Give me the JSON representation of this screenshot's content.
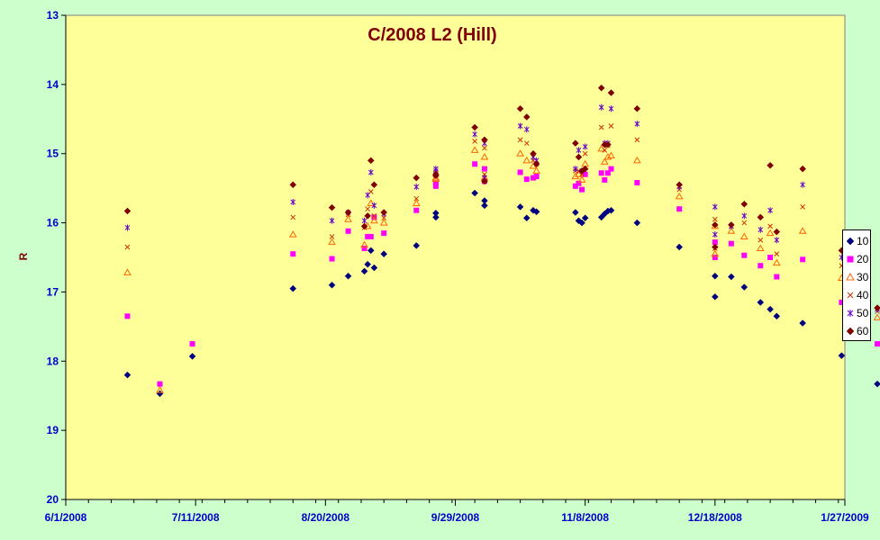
{
  "chart_data": {
    "type": "scatter",
    "title": "C/2008 L2 (Hill)",
    "xlabel": "",
    "ylabel": "R",
    "x_ticks": [
      "6/1/2008",
      "7/11/2008",
      "8/20/2008",
      "9/29/2008",
      "11/8/2008",
      "12/18/2008",
      "1/27/2009"
    ],
    "y_ticks": [
      "13",
      "14",
      "15",
      "16",
      "17",
      "18",
      "19",
      "20"
    ],
    "xlim": [
      "2008-06-01",
      "2009-01-27"
    ],
    "ylim": [
      13,
      20
    ],
    "y_reversed": true,
    "legend_position": "right",
    "series": [
      {
        "name": "10",
        "color": "#000080",
        "marker": "diamond",
        "points": [
          [
            "2008-06-20",
            18.2
          ],
          [
            "2008-06-30",
            18.47
          ],
          [
            "2008-07-10",
            17.93
          ],
          [
            "2008-08-10",
            16.95
          ],
          [
            "2008-08-22",
            16.9
          ],
          [
            "2008-08-27",
            16.77
          ],
          [
            "2008-09-01",
            16.7
          ],
          [
            "2008-09-02",
            16.6
          ],
          [
            "2008-09-03",
            16.4
          ],
          [
            "2008-09-04",
            16.65
          ],
          [
            "2008-09-07",
            16.45
          ],
          [
            "2008-09-17",
            16.33
          ],
          [
            "2008-09-23",
            15.92
          ],
          [
            "2008-09-23",
            15.86
          ],
          [
            "2008-10-05",
            15.57
          ],
          [
            "2008-10-08",
            15.75
          ],
          [
            "2008-10-08",
            15.68
          ],
          [
            "2008-10-19",
            15.77
          ],
          [
            "2008-10-21",
            15.93
          ],
          [
            "2008-10-23",
            15.82
          ],
          [
            "2008-10-24",
            15.84
          ],
          [
            "2008-11-05",
            15.85
          ],
          [
            "2008-11-06",
            15.97
          ],
          [
            "2008-11-07",
            16.0
          ],
          [
            "2008-11-08",
            15.93
          ],
          [
            "2008-11-13",
            15.92
          ],
          [
            "2008-11-14",
            15.87
          ],
          [
            "2008-11-15",
            15.83
          ],
          [
            "2008-11-16",
            15.82
          ],
          [
            "2008-11-24",
            16.0
          ],
          [
            "2008-12-07",
            16.35
          ],
          [
            "2008-12-18",
            17.07
          ],
          [
            "2008-12-18",
            16.77
          ],
          [
            "2008-12-23",
            16.78
          ],
          [
            "2008-12-27",
            16.93
          ],
          [
            "2009-01-01",
            17.15
          ],
          [
            "2009-01-04",
            17.25
          ],
          [
            "2009-01-06",
            17.35
          ],
          [
            "2009-01-14",
            17.45
          ],
          [
            "2009-01-26",
            17.92
          ],
          [
            "2009-02-06",
            18.33
          ]
        ]
      },
      {
        "name": "20",
        "color": "#ff00ff",
        "marker": "square",
        "points": [
          [
            "2008-06-20",
            17.35
          ],
          [
            "2008-06-30",
            18.33
          ],
          [
            "2008-07-10",
            17.75
          ],
          [
            "2008-08-10",
            16.45
          ],
          [
            "2008-08-22",
            16.52
          ],
          [
            "2008-08-27",
            16.12
          ],
          [
            "2008-09-01",
            16.37
          ],
          [
            "2008-09-02",
            16.2
          ],
          [
            "2008-09-03",
            16.2
          ],
          [
            "2008-09-04",
            15.92
          ],
          [
            "2008-09-07",
            16.15
          ],
          [
            "2008-09-17",
            15.82
          ],
          [
            "2008-09-23",
            15.47
          ],
          [
            "2008-09-23",
            15.43
          ],
          [
            "2008-10-05",
            15.15
          ],
          [
            "2008-10-08",
            15.22
          ],
          [
            "2008-10-08",
            15.4
          ],
          [
            "2008-10-19",
            15.27
          ],
          [
            "2008-10-21",
            15.37
          ],
          [
            "2008-10-23",
            15.35
          ],
          [
            "2008-10-24",
            15.33
          ],
          [
            "2008-11-05",
            15.47
          ],
          [
            "2008-11-06",
            15.43
          ],
          [
            "2008-11-07",
            15.52
          ],
          [
            "2008-11-08",
            15.3
          ],
          [
            "2008-11-13",
            15.28
          ],
          [
            "2008-11-14",
            15.38
          ],
          [
            "2008-11-15",
            15.28
          ],
          [
            "2008-11-16",
            15.22
          ],
          [
            "2008-11-24",
            15.42
          ],
          [
            "2008-12-07",
            15.8
          ],
          [
            "2008-12-18",
            16.5
          ],
          [
            "2008-12-18",
            16.28
          ],
          [
            "2008-12-23",
            16.3
          ],
          [
            "2008-12-27",
            16.47
          ],
          [
            "2009-01-01",
            16.62
          ],
          [
            "2009-01-04",
            16.5
          ],
          [
            "2009-01-06",
            16.78
          ],
          [
            "2009-01-14",
            16.53
          ],
          [
            "2009-01-26",
            17.15
          ],
          [
            "2009-02-06",
            17.75
          ]
        ]
      },
      {
        "name": "30",
        "color": "#ff6600",
        "marker": "triangle",
        "points": [
          [
            "2008-06-20",
            16.72
          ],
          [
            "2008-06-30",
            18.42
          ],
          [
            "2008-08-10",
            16.17
          ],
          [
            "2008-08-22",
            16.28
          ],
          [
            "2008-08-27",
            15.95
          ],
          [
            "2008-09-01",
            16.32
          ],
          [
            "2008-09-02",
            16.05
          ],
          [
            "2008-09-03",
            15.72
          ],
          [
            "2008-09-04",
            15.97
          ],
          [
            "2008-09-07",
            16.0
          ],
          [
            "2008-09-17",
            15.72
          ],
          [
            "2008-09-23",
            15.35
          ],
          [
            "2008-09-23",
            15.37
          ],
          [
            "2008-10-05",
            14.95
          ],
          [
            "2008-10-08",
            15.05
          ],
          [
            "2008-10-08",
            15.35
          ],
          [
            "2008-10-19",
            15.0
          ],
          [
            "2008-10-21",
            15.1
          ],
          [
            "2008-10-23",
            15.18
          ],
          [
            "2008-10-24",
            15.25
          ],
          [
            "2008-11-05",
            15.33
          ],
          [
            "2008-11-06",
            15.3
          ],
          [
            "2008-11-07",
            15.38
          ],
          [
            "2008-11-08",
            15.15
          ],
          [
            "2008-11-13",
            14.93
          ],
          [
            "2008-11-14",
            15.12
          ],
          [
            "2008-11-15",
            15.05
          ],
          [
            "2008-11-16",
            15.03
          ],
          [
            "2008-11-24",
            15.1
          ],
          [
            "2008-12-07",
            15.62
          ],
          [
            "2008-12-18",
            16.45
          ],
          [
            "2008-12-18",
            16.05
          ],
          [
            "2008-12-23",
            16.12
          ],
          [
            "2008-12-27",
            16.2
          ],
          [
            "2009-01-01",
            16.37
          ],
          [
            "2009-01-04",
            16.15
          ],
          [
            "2009-01-06",
            16.58
          ],
          [
            "2009-01-14",
            16.12
          ],
          [
            "2009-01-26",
            16.8
          ],
          [
            "2009-02-06",
            17.37
          ]
        ]
      },
      {
        "name": "40",
        "color": "#cc3300",
        "marker": "x",
        "points": [
          [
            "2008-06-20",
            16.35
          ],
          [
            "2008-08-10",
            15.92
          ],
          [
            "2008-08-22",
            16.2
          ],
          [
            "2008-08-27",
            15.88
          ],
          [
            "2008-09-01",
            16.07
          ],
          [
            "2008-09-02",
            15.8
          ],
          [
            "2008-09-03",
            15.55
          ],
          [
            "2008-09-04",
            15.9
          ],
          [
            "2008-09-07",
            15.93
          ],
          [
            "2008-09-17",
            15.65
          ],
          [
            "2008-09-23",
            15.28
          ],
          [
            "2008-09-23",
            15.3
          ],
          [
            "2008-10-05",
            14.82
          ],
          [
            "2008-10-08",
            14.92
          ],
          [
            "2008-10-08",
            15.3
          ],
          [
            "2008-10-19",
            14.8
          ],
          [
            "2008-10-21",
            14.85
          ],
          [
            "2008-10-23",
            15.1
          ],
          [
            "2008-10-24",
            15.15
          ],
          [
            "2008-11-05",
            15.25
          ],
          [
            "2008-11-06",
            15.25
          ],
          [
            "2008-11-07",
            15.3
          ],
          [
            "2008-11-08",
            15.0
          ],
          [
            "2008-11-13",
            14.62
          ],
          [
            "2008-11-14",
            14.95
          ],
          [
            "2008-11-15",
            14.88
          ],
          [
            "2008-11-16",
            14.6
          ],
          [
            "2008-11-24",
            14.8
          ],
          [
            "2008-12-07",
            15.52
          ],
          [
            "2008-12-18",
            16.37
          ],
          [
            "2008-12-18",
            15.95
          ],
          [
            "2008-12-23",
            16.05
          ],
          [
            "2008-12-27",
            16.0
          ],
          [
            "2009-01-01",
            16.25
          ],
          [
            "2009-01-04",
            16.05
          ],
          [
            "2009-01-06",
            16.45
          ],
          [
            "2009-01-14",
            15.77
          ],
          [
            "2009-01-26",
            16.62
          ],
          [
            "2009-02-06",
            17.28
          ]
        ]
      },
      {
        "name": "50",
        "color": "#6600cc",
        "marker": "star",
        "points": [
          [
            "2008-06-20",
            16.07
          ],
          [
            "2008-08-10",
            15.7
          ],
          [
            "2008-08-22",
            15.97
          ],
          [
            "2008-08-27",
            15.85
          ],
          [
            "2008-09-01",
            15.97
          ],
          [
            "2008-09-02",
            15.6
          ],
          [
            "2008-09-03",
            15.27
          ],
          [
            "2008-09-04",
            15.75
          ],
          [
            "2008-09-07",
            15.87
          ],
          [
            "2008-09-17",
            15.48
          ],
          [
            "2008-09-23",
            15.25
          ],
          [
            "2008-09-23",
            15.22
          ],
          [
            "2008-10-05",
            14.72
          ],
          [
            "2008-10-08",
            14.85
          ],
          [
            "2008-10-08",
            15.35
          ],
          [
            "2008-10-19",
            14.6
          ],
          [
            "2008-10-21",
            14.65
          ],
          [
            "2008-10-23",
            15.05
          ],
          [
            "2008-10-24",
            15.1
          ],
          [
            "2008-11-05",
            15.22
          ],
          [
            "2008-11-06",
            14.95
          ],
          [
            "2008-11-07",
            15.25
          ],
          [
            "2008-11-08",
            14.9
          ],
          [
            "2008-11-13",
            14.33
          ],
          [
            "2008-11-14",
            14.85
          ],
          [
            "2008-11-15",
            14.85
          ],
          [
            "2008-11-16",
            14.35
          ],
          [
            "2008-11-24",
            14.57
          ],
          [
            "2008-12-07",
            15.48
          ],
          [
            "2008-12-18",
            16.17
          ],
          [
            "2008-12-18",
            15.77
          ],
          [
            "2008-12-23",
            16.05
          ],
          [
            "2008-12-27",
            15.9
          ],
          [
            "2009-01-01",
            16.1
          ],
          [
            "2009-01-04",
            15.82
          ],
          [
            "2009-01-06",
            16.25
          ],
          [
            "2009-01-14",
            15.45
          ],
          [
            "2009-01-26",
            16.5
          ],
          [
            "2009-02-06",
            17.25
          ]
        ]
      },
      {
        "name": "60",
        "color": "#800000",
        "marker": "diamond",
        "points": [
          [
            "2008-06-20",
            15.83
          ],
          [
            "2008-08-10",
            15.45
          ],
          [
            "2008-08-22",
            15.78
          ],
          [
            "2008-08-27",
            15.85
          ],
          [
            "2008-09-01",
            16.05
          ],
          [
            "2008-09-02",
            15.9
          ],
          [
            "2008-09-03",
            15.1
          ],
          [
            "2008-09-04",
            15.45
          ],
          [
            "2008-09-07",
            15.85
          ],
          [
            "2008-09-17",
            15.35
          ],
          [
            "2008-09-23",
            15.32
          ],
          [
            "2008-09-23",
            15.3
          ],
          [
            "2008-10-05",
            14.62
          ],
          [
            "2008-10-08",
            14.8
          ],
          [
            "2008-10-08",
            15.4
          ],
          [
            "2008-10-19",
            14.35
          ],
          [
            "2008-10-21",
            14.47
          ],
          [
            "2008-10-23",
            15.0
          ],
          [
            "2008-10-24",
            15.15
          ],
          [
            "2008-11-05",
            14.85
          ],
          [
            "2008-11-06",
            15.05
          ],
          [
            "2008-11-07",
            15.25
          ],
          [
            "2008-11-08",
            15.22
          ],
          [
            "2008-11-13",
            14.05
          ],
          [
            "2008-11-14",
            14.87
          ],
          [
            "2008-11-15",
            14.87
          ],
          [
            "2008-11-16",
            14.12
          ],
          [
            "2008-11-24",
            14.35
          ],
          [
            "2008-12-07",
            15.45
          ],
          [
            "2008-12-18",
            16.35
          ],
          [
            "2008-12-18",
            16.03
          ],
          [
            "2008-12-23",
            16.03
          ],
          [
            "2008-12-27",
            15.73
          ],
          [
            "2009-01-01",
            15.92
          ],
          [
            "2009-01-04",
            15.17
          ],
          [
            "2009-01-06",
            16.13
          ],
          [
            "2009-01-14",
            15.22
          ],
          [
            "2009-01-26",
            16.4
          ],
          [
            "2009-02-06",
            17.23
          ]
        ]
      }
    ]
  }
}
